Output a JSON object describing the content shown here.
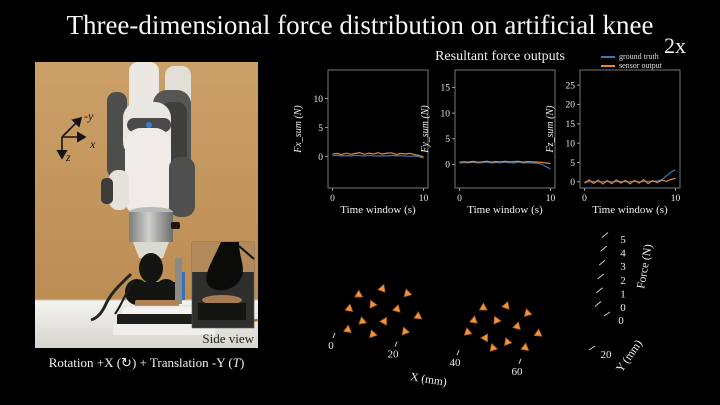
{
  "title": "Three-dimensional force distribution on artificial knee",
  "speed_badge": "2x",
  "photo": {
    "frame_axes": {
      "up": "-y",
      "right": "x",
      "down": "z"
    },
    "inset_label": "Side view",
    "caption": {
      "prefix": "Rotation +X (",
      "rotation_symbol": "↻",
      "middle": ") + Translation -Y (",
      "translation_symbol": "T",
      "suffix": ")"
    }
  },
  "plots_header": {
    "title": "Resultant force outputs",
    "legend": [
      {
        "label": "ground truth",
        "color": "#3c78b4"
      },
      {
        "label": "sensor output",
        "color": "#e0883c"
      }
    ]
  },
  "chart_data": [
    {
      "type": "line",
      "title": "Resultant force outputs (Fx)",
      "ylabel": "Fx_sum (N)",
      "xlabel": "Time window (s)",
      "xlim": [
        -0.5,
        10.5
      ],
      "ylim": [
        -5.4,
        14.9
      ],
      "xticks": [
        0,
        10
      ],
      "yticks": [
        0,
        5,
        10
      ],
      "grid": false,
      "legend_position": "top-right-outside",
      "x": [
        0,
        0.5,
        1,
        1.5,
        2,
        2.5,
        3,
        3.5,
        4,
        4.5,
        5,
        5.5,
        6,
        6.5,
        7,
        7.5,
        8,
        8.5,
        9,
        9.5,
        10
      ],
      "series": [
        {
          "name": "ground truth",
          "color": "#3c78b4",
          "values": [
            0.15,
            0.2,
            0.1,
            0.18,
            0.12,
            0.2,
            0.15,
            0.1,
            0.2,
            0.14,
            0.1,
            0.16,
            0.1,
            0.2,
            0.12,
            0.16,
            0.1,
            0.06,
            0.1,
            0.0,
            -0.25
          ]
        },
        {
          "name": "sensor output",
          "color": "#e0883c",
          "values": [
            0.45,
            0.55,
            0.35,
            0.6,
            0.4,
            0.55,
            0.65,
            0.4,
            0.6,
            0.45,
            0.65,
            0.45,
            0.6,
            0.65,
            0.35,
            0.55,
            0.45,
            0.55,
            0.35,
            0.2,
            -0.05
          ]
        }
      ]
    },
    {
      "type": "line",
      "title": "Resultant force outputs (Fy)",
      "ylabel": "Fy_sum (N)",
      "xlabel": "Time window (s)",
      "xlim": [
        -0.5,
        10.5
      ],
      "ylim": [
        -4.6,
        18.4
      ],
      "xticks": [
        0,
        10
      ],
      "yticks": [
        0,
        5,
        10,
        15
      ],
      "grid": false,
      "x": [
        0,
        0.5,
        1,
        1.5,
        2,
        2.5,
        3,
        3.5,
        4,
        4.5,
        5,
        5.5,
        6,
        6.5,
        7,
        7.5,
        8,
        8.5,
        9,
        9.5,
        10
      ],
      "series": [
        {
          "name": "ground truth",
          "color": "#3c78b4",
          "values": [
            0.3,
            0.38,
            0.3,
            0.42,
            0.3,
            0.36,
            0.42,
            0.3,
            0.38,
            0.32,
            0.42,
            0.34,
            0.3,
            0.42,
            0.3,
            0.36,
            0.3,
            0.24,
            0.1,
            -0.45,
            -0.9
          ]
        },
        {
          "name": "sensor output",
          "color": "#e0883c",
          "values": [
            0.42,
            0.52,
            0.45,
            0.58,
            0.42,
            0.5,
            0.62,
            0.45,
            0.56,
            0.5,
            0.62,
            0.5,
            0.56,
            0.6,
            0.45,
            0.56,
            0.5,
            0.46,
            0.4,
            0.3,
            0.18
          ]
        }
      ]
    },
    {
      "type": "line",
      "title": "Resultant force outputs (Fz)",
      "ylabel": "Fz_sum (N)",
      "xlabel": "Time window (s)",
      "xlim": [
        -0.5,
        10.5
      ],
      "ylim": [
        -1.6,
        28.9
      ],
      "xticks": [
        0,
        10
      ],
      "yticks": [
        0,
        5,
        10,
        15,
        20,
        25
      ],
      "grid": false,
      "x": [
        0,
        0.5,
        1,
        1.5,
        2,
        2.5,
        3,
        3.5,
        4,
        4.5,
        5,
        5.5,
        6,
        6.5,
        7,
        7.5,
        8,
        8.5,
        9,
        9.5,
        10
      ],
      "series": [
        {
          "name": "ground truth",
          "color": "#3c78b4",
          "values": [
            0.05,
            0.0,
            0.1,
            0.0,
            0.05,
            0.1,
            0.0,
            0.05,
            0.1,
            0.0,
            0.05,
            0.1,
            0.0,
            0.05,
            0.1,
            0.1,
            0.2,
            0.55,
            1.5,
            2.5,
            3.1
          ]
        },
        {
          "name": "sensor output",
          "color": "#e0883c",
          "values": [
            -0.35,
            0.5,
            -0.4,
            0.45,
            -0.55,
            0.3,
            -0.45,
            0.5,
            -0.3,
            0.4,
            -0.55,
            0.4,
            -0.3,
            0.55,
            -0.45,
            0.3,
            -0.2,
            0.45,
            0.1,
            0.6,
            0.9
          ]
        }
      ]
    },
    {
      "type": "scatter3d",
      "marker": "triangle",
      "marker_color": "#f0923f",
      "xlabel": "X (mm)",
      "ylabel": "Y (mm)",
      "zlabel": "Force (N)",
      "xticks": [
        0,
        20,
        40,
        60
      ],
      "yticks": [
        0,
        20
      ],
      "zticks": [
        0,
        1,
        2,
        3,
        4,
        5
      ],
      "xlim": [
        0,
        70
      ],
      "ylim": [
        0,
        20
      ],
      "zlim": [
        0,
        5
      ],
      "points": [
        [
          6,
          14,
          2.4
        ],
        [
          13,
          17,
          2.7
        ],
        [
          21,
          17,
          2.6
        ],
        [
          4,
          9,
          1.9
        ],
        [
          11,
          11,
          2.2
        ],
        [
          19,
          11,
          2.1
        ],
        [
          26,
          10,
          1.9
        ],
        [
          9,
          5,
          1.6
        ],
        [
          16,
          6,
          1.7
        ],
        [
          23,
          4,
          1.4
        ],
        [
          5,
          2,
          1.2
        ],
        [
          13,
          2,
          1.1
        ],
        [
          46,
          15,
          2.6
        ],
        [
          53,
          17,
          2.7
        ],
        [
          60,
          16,
          2.5
        ],
        [
          44,
          10,
          2.2
        ],
        [
          51,
          11,
          2.3
        ],
        [
          58,
          10,
          2.2
        ],
        [
          65,
          9,
          2.0
        ],
        [
          43,
          5,
          1.9
        ],
        [
          49,
          4,
          1.8
        ],
        [
          56,
          4,
          1.7
        ],
        [
          62,
          3,
          1.6
        ],
        [
          52,
          1,
          1.5
        ]
      ]
    }
  ]
}
